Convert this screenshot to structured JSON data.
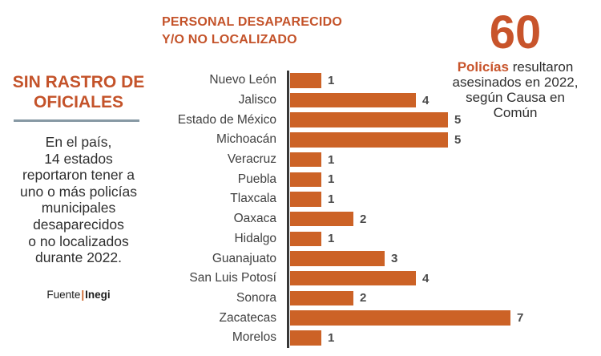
{
  "colors": {
    "accent": "#C8542B",
    "bar": "#CC6226",
    "divider": "#8799A4",
    "axis": "#383838",
    "text_dark": "#2F2F2F",
    "value_label": "#4A4A4A"
  },
  "left_panel": {
    "title_lines": [
      "SIN RASTRO DE",
      "OFICIALES"
    ],
    "body_lines": [
      "En el país,",
      "14 estados",
      "reportaron tener a",
      "uno o más policías",
      "municipales",
      "desaparecidos",
      "o no localizados",
      "durante 2022."
    ],
    "source_label": "Fuente",
    "source_separator": "|",
    "source_value": "Inegi"
  },
  "chart": {
    "title_lines": [
      "PERSONAL DESAPARECIDO",
      "Y/O NO LOCALIZADO"
    ]
  },
  "chart_data": {
    "type": "bar",
    "orientation": "horizontal",
    "title": "PERSONAL DESAPARECIDO Y/O NO LOCALIZADO",
    "categories": [
      "Nuevo León",
      "Jalisco",
      "Estado de México",
      "Michoacán",
      "Veracruz",
      "Puebla",
      "Tlaxcala",
      "Oaxaca",
      "Hidalgo",
      "Guanajuato",
      "San Luis Potosí",
      "Sonora",
      "Zacatecas",
      "Morelos"
    ],
    "values": [
      1,
      4,
      5,
      5,
      1,
      1,
      1,
      2,
      1,
      3,
      4,
      2,
      7,
      1
    ],
    "xlim": [
      0,
      7.5
    ],
    "grid": false,
    "legend": false,
    "value_labels_shown": true,
    "bar_color": "#CC6226"
  },
  "callout": {
    "number": "60",
    "highlight": "Policías",
    "line1_rest": " resultaron",
    "lines_rest": [
      "asesinados en 2022,",
      "según Causa en",
      "Común"
    ]
  }
}
